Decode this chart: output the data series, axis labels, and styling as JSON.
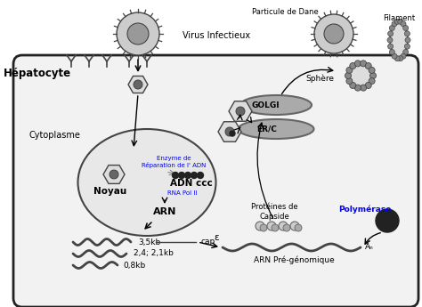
{
  "bg_color": "#ffffff",
  "cell_border_color": "#222222",
  "cell_facecolor": "#f2f2f2",
  "nucleus_facecolor": "#e8e8e8",
  "nucleus_border": "#444444",
  "golgi_color": "#999999",
  "text_hepatocyte": "Hépatocyte",
  "text_cytoplasme": "Cytoplasme",
  "text_noyau": "Noyau",
  "text_adn": "ADN ccc",
  "text_arn": "ARN",
  "text_virus": "Virus Infectieux",
  "text_golgi": "GOLGI",
  "text_er": "ER/C",
  "text_polymerase": "Polymérase",
  "text_capside": "Protéines de\nCapside",
  "text_arn_pre": "ARN Pré-génomique",
  "text_particule": "Particule de Dane",
  "text_sphere": "Sphère",
  "text_filament": "Filament",
  "text_enzyme": "Enzyme de\nRéparation de l' ADN",
  "text_rnapol": "RNA Pol II",
  "text_3_5kb": "3,5kb",
  "text_2_4kb": "2,4; 2,1kb",
  "text_0_8kb": "0,8kb",
  "text_cap": "cap",
  "text_epsilon": "ε",
  "text_an": "Aₙ"
}
